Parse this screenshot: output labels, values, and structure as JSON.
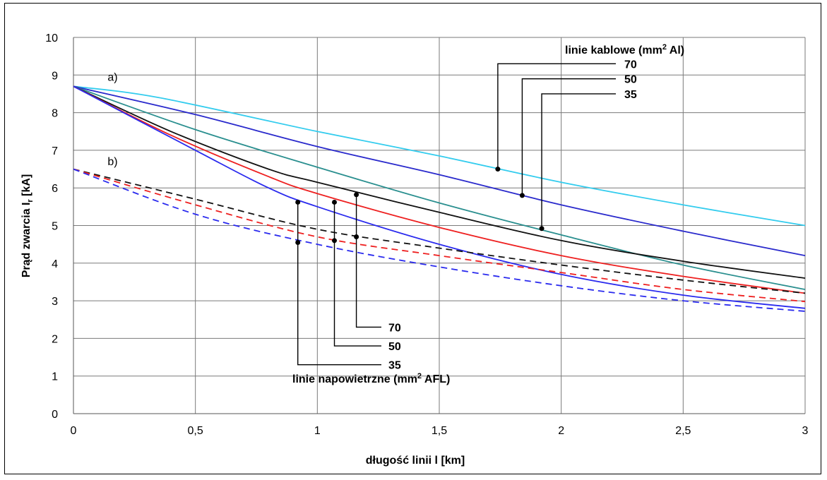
{
  "chart_data": {
    "type": "line",
    "xlabel": "długość linii l [km]",
    "ylabel_main": "Prąd zwarcia I",
    "ylabel_sub": "r",
    "ylabel_tail": " [kA]",
    "xlim": [
      0,
      3
    ],
    "ylim": [
      0,
      10
    ],
    "x_ticks": [
      0,
      0.5,
      1,
      1.5,
      2,
      2.5,
      3
    ],
    "x_tick_labels": [
      "0",
      "0,5",
      "1",
      "1,5",
      "2",
      "2,5",
      "3"
    ],
    "y_ticks": [
      0,
      1,
      2,
      3,
      4,
      5,
      6,
      7,
      8,
      9,
      10
    ],
    "y_tick_labels": [
      "0",
      "1",
      "2",
      "3",
      "4",
      "5",
      "6",
      "7",
      "8",
      "9",
      "10"
    ],
    "grid": true,
    "group_labels": [
      {
        "text": "a)",
        "x": 0.14,
        "y": 8.85
      },
      {
        "text": "b)",
        "x": 0.14,
        "y": 6.6
      }
    ],
    "cable_legend": {
      "title_main": "linie kablowe (mm",
      "title_sup": "2",
      "title_tail": " Al)",
      "items": [
        "70",
        "50",
        "35"
      ]
    },
    "overhead_legend": {
      "title_main": "linie napowietrzne (mm",
      "title_sup": "2",
      "title_tail": " AFL)",
      "items": [
        "70",
        "50",
        "35"
      ]
    },
    "series": [
      {
        "group": "a",
        "color": "#33ccee",
        "dash": false,
        "points": [
          [
            0,
            8.7
          ],
          [
            0.35,
            8.4
          ],
          [
            1,
            7.5
          ],
          [
            1.5,
            6.85
          ],
          [
            2,
            6.15
          ],
          [
            2.5,
            5.55
          ],
          [
            3,
            5.0
          ]
        ]
      },
      {
        "group": "a",
        "color": "#2a2acc",
        "dash": false,
        "points": [
          [
            0,
            8.7
          ],
          [
            0.5,
            7.95
          ],
          [
            1,
            7.1
          ],
          [
            1.5,
            6.35
          ],
          [
            2,
            5.55
          ],
          [
            2.5,
            4.85
          ],
          [
            3,
            4.2
          ]
        ]
      },
      {
        "group": "a",
        "color": "#2a8f8f",
        "dash": false,
        "points": [
          [
            0,
            8.7
          ],
          [
            0.5,
            7.55
          ],
          [
            1,
            6.55
          ],
          [
            1.5,
            5.6
          ],
          [
            2,
            4.75
          ],
          [
            2.5,
            3.95
          ],
          [
            3,
            3.3
          ]
        ]
      },
      {
        "group": "a",
        "color": "#111111",
        "dash": false,
        "points": [
          [
            0,
            8.7
          ],
          [
            0.4,
            7.5
          ],
          [
            0.8,
            6.5
          ],
          [
            1,
            6.15
          ],
          [
            1.5,
            5.35
          ],
          [
            2,
            4.6
          ],
          [
            2.5,
            4.05
          ],
          [
            3,
            3.6
          ]
        ]
      },
      {
        "group": "a",
        "color": "#ee2020",
        "dash": false,
        "points": [
          [
            0,
            8.7
          ],
          [
            0.4,
            7.4
          ],
          [
            0.8,
            6.3
          ],
          [
            1,
            5.85
          ],
          [
            1.5,
            4.95
          ],
          [
            2,
            4.2
          ],
          [
            2.5,
            3.65
          ],
          [
            3,
            3.2
          ]
        ]
      },
      {
        "group": "a",
        "color": "#2a2aee",
        "dash": false,
        "points": [
          [
            0,
            8.7
          ],
          [
            0.5,
            7.0
          ],
          [
            0.8,
            6.0
          ],
          [
            1,
            5.5
          ],
          [
            1.5,
            4.5
          ],
          [
            2,
            3.7
          ],
          [
            2.5,
            3.15
          ],
          [
            3,
            2.8
          ]
        ]
      },
      {
        "group": "b",
        "color": "#111111",
        "dash": true,
        "points": [
          [
            0,
            6.5
          ],
          [
            0.5,
            5.7
          ],
          [
            1,
            4.9
          ],
          [
            1.5,
            4.4
          ],
          [
            2,
            3.95
          ],
          [
            2.5,
            3.55
          ],
          [
            3,
            3.2
          ]
        ]
      },
      {
        "group": "b",
        "color": "#ee2020",
        "dash": true,
        "points": [
          [
            0,
            6.5
          ],
          [
            0.5,
            5.55
          ],
          [
            1,
            4.7
          ],
          [
            1.5,
            4.2
          ],
          [
            2,
            3.75
          ],
          [
            2.5,
            3.3
          ],
          [
            3,
            2.98
          ]
        ]
      },
      {
        "group": "b",
        "color": "#2a2aee",
        "dash": true,
        "points": [
          [
            0,
            6.5
          ],
          [
            0.5,
            5.3
          ],
          [
            1,
            4.5
          ],
          [
            1.5,
            3.9
          ],
          [
            2,
            3.4
          ],
          [
            2.5,
            3.0
          ],
          [
            3,
            2.72
          ]
        ]
      }
    ],
    "cable_markers": [
      {
        "label_index": 0,
        "x": 1.74,
        "y": 6.5,
        "label_y": 9.3
      },
      {
        "label_index": 1,
        "x": 1.84,
        "y": 5.8,
        "label_y": 8.9
      },
      {
        "label_index": 2,
        "x": 1.92,
        "y": 4.92,
        "label_y": 8.5
      }
    ],
    "overhead_markers": [
      {
        "label_index": 0,
        "x": 1.16,
        "y_top": 5.82,
        "y_mid": 4.7,
        "label_y": 2.3
      },
      {
        "label_index": 1,
        "x": 1.07,
        "y_top": 5.62,
        "y_mid": 4.6,
        "label_y": 1.8
      },
      {
        "label_index": 2,
        "x": 0.92,
        "y_top": 5.62,
        "y_mid": 4.55,
        "label_y": 1.3
      }
    ]
  }
}
